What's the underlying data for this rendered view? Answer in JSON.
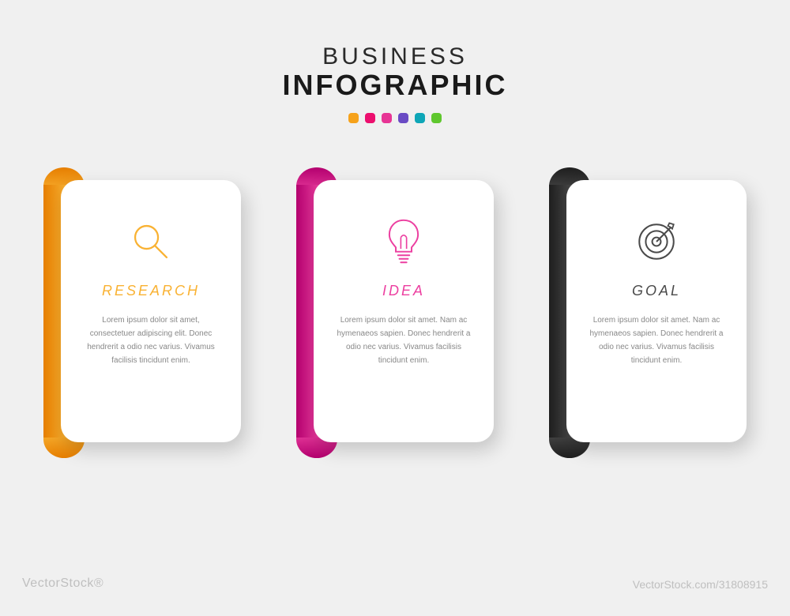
{
  "background_color": "#f0f0f0",
  "header": {
    "line1": "BUSINESS",
    "line2": "INFOGRAPHIC",
    "line1_fontsize": 30,
    "line2_fontsize": 36,
    "text_color": "#1a1a1a",
    "dots": [
      {
        "color": "#f6a21b"
      },
      {
        "color": "#ec0f6e"
      },
      {
        "color": "#e73595"
      },
      {
        "color": "#6a4bc4"
      },
      {
        "color": "#0ea6b7"
      },
      {
        "color": "#5fc72e"
      }
    ]
  },
  "cards": [
    {
      "icon": "magnifier",
      "title": "RESEARCH",
      "accent_light": "#f9b233",
      "accent_dark": "#e67e00",
      "body": "Lorem ipsum dolor sit amet, consectetuer adipiscing elit. Donec hendrerit a odio nec varius. Vivamus facilisis tincidunt enim."
    },
    {
      "icon": "bulb",
      "title": "IDEA",
      "accent_light": "#ec3fa0",
      "accent_dark": "#b3006e",
      "body": "Lorem ipsum dolor sit amet. Nam ac hymenaeos sapien. Donec hendrerit a odio nec varius. Vivamus facilisis tincidunt enim."
    },
    {
      "icon": "target",
      "title": "GOAL",
      "accent_light": "#4a4a4a",
      "accent_dark": "#1e1e1e",
      "body": "Lorem ipsum dolor sit amet. Nam ac hymenaeos sapien. Donec hendrerit a odio nec varius. Vivamus facilisis tincidunt enim."
    }
  ],
  "card_style": {
    "card_bg": "#ffffff",
    "card_radius": 22,
    "body_text_color": "#888888",
    "title_fontsize": 18,
    "body_fontsize": 10,
    "icon_size": 58
  },
  "watermark": {
    "left": "VectorStock®",
    "right": "VectorStock.com/31808915",
    "color": "#bfbfbf"
  }
}
